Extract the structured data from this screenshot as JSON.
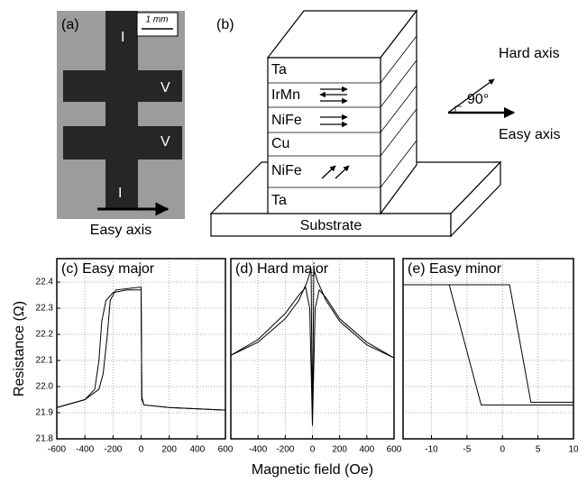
{
  "photo": {
    "label": "(a)",
    "scale": "1 mm",
    "terminals": [
      "I",
      "V",
      "V",
      "I"
    ],
    "caption": "Easy axis"
  },
  "diagram": {
    "label": "(b)",
    "layers": [
      "Ta",
      "IrMn",
      "NiFe",
      "Cu",
      "NiFe",
      "Ta"
    ],
    "substrate": "Substrate",
    "hard_axis": "Hard axis",
    "angle": "90°",
    "easy_axis": "Easy axis"
  },
  "chart_data": [
    {
      "type": "line",
      "title": "(c) Easy major",
      "ylabel": "Resistance (Ω)",
      "color": "#000000",
      "grid": true,
      "xlim": [
        -600,
        600
      ],
      "xticks": [
        -600,
        -400,
        -200,
        0,
        200,
        400,
        600
      ],
      "ylim": [
        21.8,
        22.49
      ],
      "yticks": [
        21.8,
        21.9,
        {
          "value": 22,
          "label": "22.0"
        },
        22.1,
        22.2,
        22.3,
        22.4
      ],
      "series": [
        {
          "x": [
            600,
            200,
            20,
            5,
            0,
            -100,
            -200,
            -250,
            -280,
            -300,
            -330,
            -400,
            -600
          ],
          "values": [
            21.91,
            21.92,
            21.93,
            21.95,
            22.37,
            22.37,
            22.36,
            22.33,
            22.25,
            22.1,
            21.99,
            21.95,
            21.92
          ]
        },
        {
          "x": [
            -600,
            -400,
            -300,
            -270,
            -240,
            -220,
            -180,
            -20,
            0,
            5,
            20,
            200,
            600
          ],
          "values": [
            21.92,
            21.95,
            21.99,
            22.05,
            22.2,
            22.33,
            22.37,
            22.38,
            22.38,
            21.96,
            21.93,
            21.92,
            21.91
          ]
        }
      ]
    },
    {
      "type": "line",
      "title": "(d) Hard major",
      "xlabel": "Magnetic field (Oe)",
      "color": "#000000",
      "grid": true,
      "xlim": [
        -600,
        600
      ],
      "xticks": [
        -400,
        -200,
        0,
        200,
        400,
        600
      ],
      "ylim": [
        21.8,
        22.49
      ],
      "yticks": [
        21.8,
        21.9,
        22,
        22.1,
        22.2,
        22.3,
        22.4
      ],
      "series": [
        {
          "x": [
            -600,
            -400,
            -200,
            -100,
            -40,
            -10,
            0,
            20,
            50,
            100,
            200,
            400,
            600
          ],
          "values": [
            22.12,
            22.17,
            22.26,
            22.33,
            22.4,
            22.45,
            21.85,
            22.3,
            22.37,
            22.34,
            22.26,
            22.17,
            22.11
          ]
        },
        {
          "x": [
            -600,
            -400,
            -200,
            -100,
            -50,
            -20,
            0,
            10,
            40,
            100,
            200,
            400,
            600
          ],
          "values": [
            22.12,
            22.18,
            22.28,
            22.35,
            22.38,
            22.3,
            21.85,
            22.45,
            22.4,
            22.33,
            22.25,
            22.16,
            22.11
          ]
        }
      ]
    },
    {
      "type": "line",
      "title": "(e) Easy minor",
      "color": "#000000",
      "grid": true,
      "xlim": [
        -14,
        10
      ],
      "xticks": [
        -10,
        -5,
        0,
        5,
        10
      ],
      "ylim": [
        21.8,
        22.49
      ],
      "yticks": [
        21.8,
        21.9,
        22,
        22.1,
        22.2,
        22.3,
        22.4
      ],
      "series": [
        {
          "x": [
            -14,
            -7.5,
            -3,
            10
          ],
          "values": [
            22.39,
            22.39,
            21.93,
            21.93
          ]
        },
        {
          "x": [
            -14,
            1,
            4,
            10
          ],
          "values": [
            22.39,
            22.39,
            21.94,
            21.94
          ]
        }
      ]
    }
  ]
}
